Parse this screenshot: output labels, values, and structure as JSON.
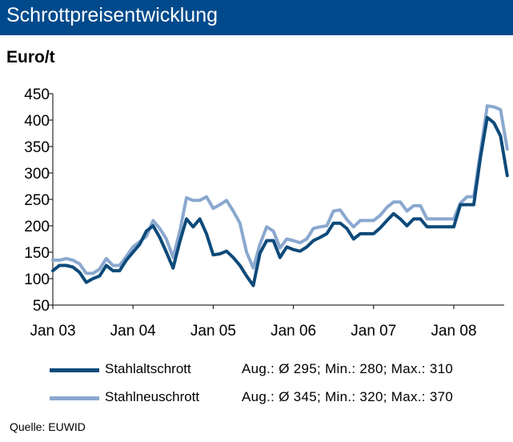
{
  "header": {
    "title": "Schrottpreisentwicklung"
  },
  "chart_data": {
    "type": "line",
    "title": "Schrottpreisentwicklung",
    "ylabel": "Euro/t",
    "xlabel": "",
    "ylim": [
      50,
      450
    ],
    "yticks": [
      50,
      100,
      150,
      200,
      250,
      300,
      350,
      400,
      450
    ],
    "x_start": "2003-01",
    "x_tick_labels": [
      "Jan 03",
      "Jan 04",
      "Jan 05",
      "Jan 06",
      "Jan 07",
      "Jan 08"
    ],
    "grid": false,
    "legend_position": "bottom",
    "series": [
      {
        "name": "Stahlaltschrott",
        "color": "#0d4a7a",
        "stats": "Aug.: Ø 295; Min.: 280; Max.: 310",
        "values": [
          115,
          125,
          125,
          122,
          112,
          93,
          100,
          105,
          125,
          115,
          115,
          135,
          150,
          165,
          190,
          200,
          178,
          150,
          120,
          170,
          213,
          198,
          213,
          185,
          145,
          147,
          152,
          140,
          125,
          105,
          87,
          148,
          172,
          172,
          140,
          160,
          155,
          152,
          160,
          172,
          178,
          185,
          205,
          205,
          195,
          175,
          185,
          185,
          185,
          196,
          210,
          223,
          213,
          200,
          213,
          213,
          198,
          198,
          198,
          198,
          198,
          240,
          240,
          240,
          330,
          405,
          395,
          370,
          295
        ]
      },
      {
        "name": "Stahlneuschrott",
        "color": "#8aa8cf",
        "stats": "Aug.: Ø 345; Min.: 320; Max.: 370",
        "values": [
          135,
          135,
          138,
          135,
          128,
          110,
          110,
          118,
          138,
          125,
          125,
          142,
          160,
          170,
          180,
          210,
          195,
          175,
          140,
          190,
          253,
          248,
          248,
          255,
          233,
          240,
          248,
          228,
          205,
          150,
          120,
          165,
          198,
          190,
          158,
          175,
          172,
          168,
          175,
          195,
          198,
          200,
          228,
          230,
          212,
          198,
          210,
          210,
          210,
          220,
          235,
          245,
          245,
          228,
          238,
          238,
          213,
          213,
          213,
          213,
          213,
          243,
          255,
          255,
          340,
          427,
          425,
          420,
          345
        ]
      }
    ]
  },
  "source": {
    "text": "Quelle: EUWID"
  }
}
